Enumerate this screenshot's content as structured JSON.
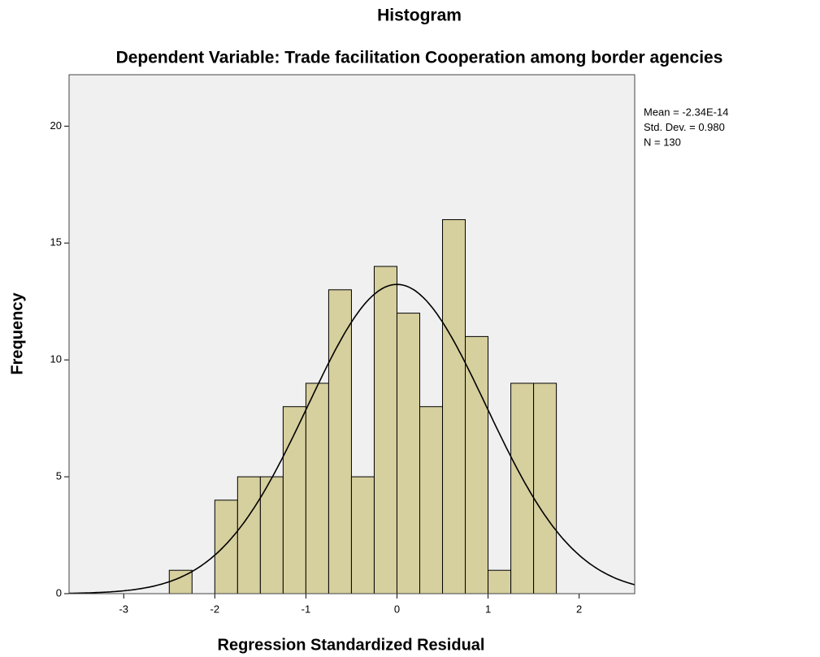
{
  "chart_data": {
    "type": "histogram",
    "title": "Histogram",
    "subtitle": "Dependent Variable: Trade facilitation  Cooperation among border agencies",
    "x_label": "Regression Standardized Residual",
    "y_label": "Frequency",
    "bins": [
      -2.5,
      -2.25,
      -2,
      -1.75,
      -1.5,
      -1.25,
      -1,
      -0.75,
      -0.5,
      -0.25,
      0,
      0.25,
      0.5,
      0.75,
      1,
      1.25,
      1.5,
      1.75
    ],
    "values": [
      1,
      0,
      4,
      5,
      5,
      8,
      9,
      13,
      5,
      14,
      12,
      8,
      16,
      11,
      1,
      9,
      9
    ],
    "color": "#d6cf9e",
    "xlim": [
      -3.6,
      2.61
    ],
    "ylim": [
      0,
      22.2
    ],
    "xticks": [
      -3,
      -2,
      -1,
      0,
      1,
      2
    ],
    "yticks": [
      0,
      5,
      10,
      15,
      20
    ],
    "stats": [
      {
        "value": -2.34e-14,
        "label": "Mean = -2.34E-14"
      },
      {
        "value": 0.98,
        "label": "Std. Dev. = 0.980"
      },
      {
        "value": 130,
        "label": "N = 130"
      }
    ]
  }
}
